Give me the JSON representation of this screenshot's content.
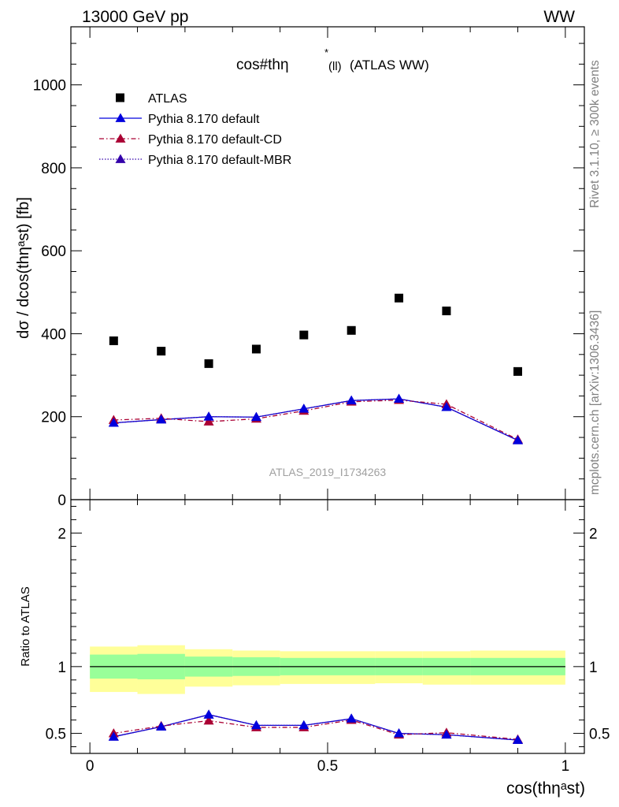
{
  "header": {
    "left": "13000 GeV pp",
    "right": "WW"
  },
  "side_texts": {
    "top": "Rivet 3.1.10, ≥ 300k events",
    "bottom": "mcplots.cern.ch [arXiv:1306.3436]"
  },
  "watermark": "ATLAS_2019_I1734263",
  "chart_data": [
    {
      "type": "scatter",
      "title": "cos#thη* (ll) (ATLAS WW)",
      "title_parts": {
        "main": "cos#thη",
        "sup": "*",
        "sub": "(ll)",
        "tail": "(ATLAS WW)"
      },
      "ylabel": "dσ / dcos(thηᵃst) [fb]",
      "xlabel": "",
      "ylim": [
        0,
        1140
      ],
      "xlim": [
        -0.04,
        1.04
      ],
      "yticks": [
        0,
        200,
        400,
        600,
        800,
        1000
      ],
      "ytick_labels": [
        "0",
        "200",
        "400",
        "600",
        "800",
        "1000"
      ],
      "legend_position": "top-left",
      "legend": [
        {
          "label": "ATLAS",
          "marker": "square",
          "color": "#000000"
        },
        {
          "label": "Pythia 8.170 default",
          "marker": "triangle",
          "color": "#0000dd",
          "line": "solid"
        },
        {
          "label": "Pythia 8.170 default-CD",
          "marker": "triangle",
          "color": "#aa0033",
          "line": "dashdot"
        },
        {
          "label": "Pythia 8.170 default-MBR",
          "marker": "triangle",
          "color": "#3300aa",
          "line": "dotted"
        }
      ],
      "x": [
        0.05,
        0.15,
        0.25,
        0.35,
        0.45,
        0.55,
        0.65,
        0.75,
        0.9
      ],
      "series": [
        {
          "name": "ATLAS",
          "values": [
            383,
            358,
            328,
            363,
            397,
            408,
            486,
            455,
            309
          ]
        },
        {
          "name": "Pythia 8.170 default",
          "values": [
            185,
            193,
            200,
            199,
            219,
            239,
            243,
            223,
            143
          ]
        },
        {
          "name": "Pythia 8.170 default-CD",
          "values": [
            192,
            196,
            188,
            195,
            214,
            236,
            240,
            230,
            145
          ]
        },
        {
          "name": "Pythia 8.170 default-MBR",
          "values": [
            185,
            193,
            200,
            199,
            219,
            239,
            243,
            223,
            143
          ]
        }
      ]
    },
    {
      "type": "line",
      "ylabel": "Ratio to ATLAS",
      "xlabel": "cos(thηᵃst)",
      "ylim": [
        0.35,
        2.25
      ],
      "xlim": [
        -0.04,
        1.04
      ],
      "yticks": [
        0.5,
        1,
        2
      ],
      "ytick_labels": [
        "0.5",
        "1",
        "2"
      ],
      "xticks": [
        0,
        0.5,
        1
      ],
      "xtick_labels": [
        "0",
        "0.5",
        "1"
      ],
      "reference_line": 1,
      "bands": {
        "edges": [
          0,
          0.1,
          0.2,
          0.3,
          0.4,
          0.5,
          0.6,
          0.7,
          0.8,
          1.0
        ],
        "stat": [
          [
            0.91,
            1.09
          ],
          [
            0.905,
            1.095
          ],
          [
            0.925,
            1.075
          ],
          [
            0.93,
            1.07
          ],
          [
            0.935,
            1.065
          ],
          [
            0.935,
            1.065
          ],
          [
            0.935,
            1.065
          ],
          [
            0.935,
            1.065
          ],
          [
            0.935,
            1.065
          ]
        ],
        "total": [
          [
            0.81,
            1.15
          ],
          [
            0.795,
            1.16
          ],
          [
            0.85,
            1.13
          ],
          [
            0.86,
            1.12
          ],
          [
            0.87,
            1.115
          ],
          [
            0.87,
            1.115
          ],
          [
            0.875,
            1.115
          ],
          [
            0.865,
            1.115
          ],
          [
            0.865,
            1.12
          ]
        ],
        "stat_color": "#99ff99",
        "total_color": "#ffff99"
      },
      "x": [
        0.05,
        0.15,
        0.25,
        0.35,
        0.45,
        0.55,
        0.65,
        0.75,
        0.9
      ],
      "series": [
        {
          "name": "Pythia 8.170 default",
          "values": [
            0.475,
            0.55,
            0.64,
            0.56,
            0.56,
            0.61,
            0.5,
            0.49,
            0.45
          ]
        },
        {
          "name": "Pythia 8.170 default-CD",
          "values": [
            0.5,
            0.555,
            0.595,
            0.545,
            0.545,
            0.6,
            0.49,
            0.505,
            0.455
          ]
        },
        {
          "name": "Pythia 8.170 default-MBR",
          "values": [
            0.475,
            0.55,
            0.64,
            0.56,
            0.56,
            0.61,
            0.5,
            0.49,
            0.45
          ]
        }
      ]
    }
  ]
}
